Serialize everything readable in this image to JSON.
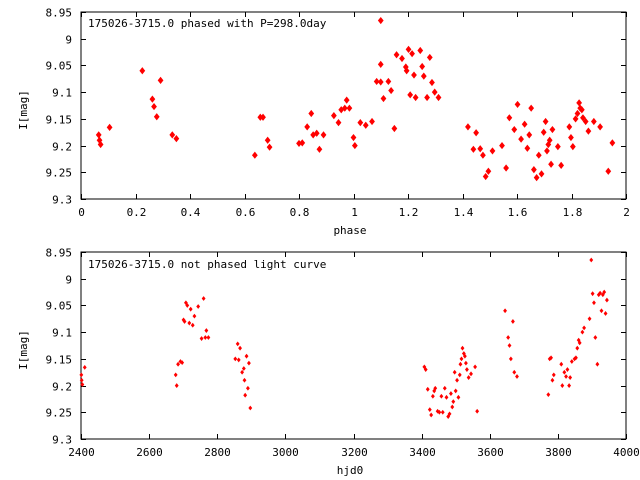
{
  "chart_data": [
    {
      "type": "scatter",
      "title": "175026-3715.0 phased with P=298.0day",
      "xlabel": "phase",
      "ylabel": "I[mag]",
      "xlim": [
        0,
        2
      ],
      "ylim": [
        8.95,
        9.3
      ],
      "y_inverted": true,
      "grid": false,
      "xticks": [
        "0",
        "0.2",
        "0.4",
        "0.6",
        "0.8",
        "1",
        "1.2",
        "1.4",
        "1.6",
        "1.8",
        "2"
      ],
      "yticks": [
        "8.95",
        "9",
        "9.05",
        "9.1",
        "9.15",
        "9.2",
        "9.25",
        "9.3"
      ],
      "marker": "filled-diamond-large",
      "color": "#ff0000",
      "points": [
        [
          0.065,
          9.18
        ],
        [
          0.068,
          9.19
        ],
        [
          0.072,
          9.198
        ],
        [
          0.105,
          9.166
        ],
        [
          0.225,
          9.06
        ],
        [
          0.262,
          9.113
        ],
        [
          0.268,
          9.127
        ],
        [
          0.278,
          9.146
        ],
        [
          0.292,
          9.078
        ],
        [
          0.335,
          9.18
        ],
        [
          0.35,
          9.187
        ],
        [
          0.638,
          9.218
        ],
        [
          0.658,
          9.147
        ],
        [
          0.668,
          9.147
        ],
        [
          0.685,
          9.19
        ],
        [
          0.692,
          9.203
        ],
        [
          0.8,
          9.196
        ],
        [
          0.812,
          9.195
        ],
        [
          0.83,
          9.165
        ],
        [
          0.845,
          9.14
        ],
        [
          0.852,
          9.18
        ],
        [
          0.865,
          9.177
        ],
        [
          0.875,
          9.207
        ],
        [
          0.89,
          9.18
        ],
        [
          0.928,
          9.144
        ],
        [
          0.945,
          9.157
        ],
        [
          0.955,
          9.133
        ],
        [
          0.968,
          9.13
        ],
        [
          0.975,
          9.115
        ],
        [
          0.985,
          9.13
        ],
        [
          1.0,
          9.185
        ],
        [
          1.005,
          9.2
        ],
        [
          1.025,
          9.157
        ],
        [
          1.045,
          9.162
        ],
        [
          1.068,
          9.155
        ],
        [
          1.085,
          9.08
        ],
        [
          1.1,
          9.081
        ],
        [
          1.1,
          9.048
        ],
        [
          1.1,
          8.966
        ],
        [
          1.11,
          9.112
        ],
        [
          1.128,
          9.08
        ],
        [
          1.138,
          9.097
        ],
        [
          1.15,
          9.168
        ],
        [
          1.158,
          9.03
        ],
        [
          1.178,
          9.037
        ],
        [
          1.192,
          9.053
        ],
        [
          1.195,
          9.06
        ],
        [
          1.202,
          9.02
        ],
        [
          1.208,
          9.105
        ],
        [
          1.215,
          9.028
        ],
        [
          1.222,
          9.068
        ],
        [
          1.228,
          9.11
        ],
        [
          1.245,
          9.022
        ],
        [
          1.252,
          9.052
        ],
        [
          1.258,
          9.07
        ],
        [
          1.27,
          9.11
        ],
        [
          1.28,
          9.035
        ],
        [
          1.288,
          9.082
        ],
        [
          1.298,
          9.1
        ],
        [
          1.312,
          9.11
        ],
        [
          1.42,
          9.165
        ],
        [
          1.44,
          9.207
        ],
        [
          1.45,
          9.176
        ],
        [
          1.465,
          9.206
        ],
        [
          1.475,
          9.218
        ],
        [
          1.485,
          9.258
        ],
        [
          1.495,
          9.248
        ],
        [
          1.51,
          9.21
        ],
        [
          1.545,
          9.2
        ],
        [
          1.56,
          9.242
        ],
        [
          1.572,
          9.148
        ],
        [
          1.59,
          9.17
        ],
        [
          1.602,
          9.123
        ],
        [
          1.615,
          9.188
        ],
        [
          1.628,
          9.16
        ],
        [
          1.638,
          9.205
        ],
        [
          1.645,
          9.18
        ],
        [
          1.652,
          9.13
        ],
        [
          1.662,
          9.245
        ],
        [
          1.672,
          9.26
        ],
        [
          1.68,
          9.218
        ],
        [
          1.69,
          9.253
        ],
        [
          1.698,
          9.175
        ],
        [
          1.705,
          9.155
        ],
        [
          1.71,
          9.21
        ],
        [
          1.715,
          9.198
        ],
        [
          1.72,
          9.19
        ],
        [
          1.725,
          9.235
        ],
        [
          1.73,
          9.17
        ],
        [
          1.75,
          9.202
        ],
        [
          1.762,
          9.237
        ],
        [
          1.792,
          9.165
        ],
        [
          1.798,
          9.185
        ],
        [
          1.805,
          9.202
        ],
        [
          1.815,
          9.15
        ],
        [
          1.822,
          9.14
        ],
        [
          1.828,
          9.12
        ],
        [
          1.832,
          9.13
        ],
        [
          1.838,
          9.133
        ],
        [
          1.842,
          9.148
        ],
        [
          1.852,
          9.155
        ],
        [
          1.862,
          9.173
        ],
        [
          1.882,
          9.155
        ],
        [
          1.905,
          9.165
        ],
        [
          1.935,
          9.248
        ],
        [
          1.95,
          9.195
        ]
      ]
    },
    {
      "type": "scatter",
      "title": "175026-3715.0 not phased light curve",
      "xlabel": "hjd0",
      "ylabel": "I[mag]",
      "xlim": [
        2400,
        4000
      ],
      "ylim": [
        8.95,
        9.3
      ],
      "y_inverted": true,
      "grid": false,
      "xticks": [
        "2400",
        "2600",
        "2800",
        "3000",
        "3200",
        "3400",
        "3600",
        "3800",
        "4000"
      ],
      "yticks": [
        "8.95",
        "9",
        "9.05",
        "9.1",
        "9.15",
        "9.2",
        "9.25",
        "9.3"
      ],
      "marker": "filled-diamond-small",
      "color": "#ff0000",
      "points": [
        [
          2401,
          9.18
        ],
        [
          2402,
          9.19
        ],
        [
          2404,
          9.198
        ],
        [
          2411,
          9.166
        ],
        [
          2678,
          9.18
        ],
        [
          2681,
          9.2
        ],
        [
          2685,
          9.16
        ],
        [
          2692,
          9.155
        ],
        [
          2697,
          9.157
        ],
        [
          2701,
          9.077
        ],
        [
          2704,
          9.08
        ],
        [
          2708,
          9.045
        ],
        [
          2712,
          9.05
        ],
        [
          2718,
          9.083
        ],
        [
          2722,
          9.057
        ],
        [
          2728,
          9.087
        ],
        [
          2733,
          9.07
        ],
        [
          2744,
          9.052
        ],
        [
          2754,
          9.112
        ],
        [
          2760,
          9.037
        ],
        [
          2765,
          9.11
        ],
        [
          2768,
          9.097
        ],
        [
          2774,
          9.11
        ],
        [
          2853,
          9.15
        ],
        [
          2860,
          9.122
        ],
        [
          2863,
          9.152
        ],
        [
          2867,
          9.13
        ],
        [
          2873,
          9.175
        ],
        [
          2878,
          9.168
        ],
        [
          2880,
          9.19
        ],
        [
          2882,
          9.218
        ],
        [
          2886,
          9.145
        ],
        [
          2890,
          9.205
        ],
        [
          2893,
          9.158
        ],
        [
          2897,
          9.242
        ],
        [
          3408,
          9.165
        ],
        [
          3412,
          9.17
        ],
        [
          3418,
          9.207
        ],
        [
          3424,
          9.245
        ],
        [
          3428,
          9.255
        ],
        [
          3433,
          9.22
        ],
        [
          3437,
          9.21
        ],
        [
          3440,
          9.205
        ],
        [
          3447,
          9.248
        ],
        [
          3452,
          9.25
        ],
        [
          3458,
          9.22
        ],
        [
          3462,
          9.25
        ],
        [
          3468,
          9.205
        ],
        [
          3473,
          9.222
        ],
        [
          3478,
          9.258
        ],
        [
          3482,
          9.253
        ],
        [
          3486,
          9.215
        ],
        [
          3490,
          9.24
        ],
        [
          3493,
          9.23
        ],
        [
          3497,
          9.175
        ],
        [
          3500,
          9.21
        ],
        [
          3504,
          9.19
        ],
        [
          3508,
          9.222
        ],
        [
          3512,
          9.18
        ],
        [
          3514,
          9.16
        ],
        [
          3517,
          9.15
        ],
        [
          3520,
          9.13
        ],
        [
          3524,
          9.14
        ],
        [
          3527,
          9.145
        ],
        [
          3530,
          9.158
        ],
        [
          3533,
          9.17
        ],
        [
          3538,
          9.185
        ],
        [
          3545,
          9.178
        ],
        [
          3557,
          9.165
        ],
        [
          3563,
          9.248
        ],
        [
          3645,
          9.06
        ],
        [
          3654,
          9.11
        ],
        [
          3658,
          9.125
        ],
        [
          3662,
          9.15
        ],
        [
          3668,
          9.08
        ],
        [
          3672,
          9.175
        ],
        [
          3680,
          9.183
        ],
        [
          3772,
          9.217
        ],
        [
          3776,
          9.15
        ],
        [
          3780,
          9.148
        ],
        [
          3784,
          9.19
        ],
        [
          3788,
          9.18
        ],
        [
          3810,
          9.16
        ],
        [
          3813,
          9.2
        ],
        [
          3819,
          9.175
        ],
        [
          3824,
          9.183
        ],
        [
          3828,
          9.17
        ],
        [
          3833,
          9.2
        ],
        [
          3836,
          9.185
        ],
        [
          3841,
          9.155
        ],
        [
          3849,
          9.15
        ],
        [
          3853,
          9.148
        ],
        [
          3857,
          9.13
        ],
        [
          3861,
          9.115
        ],
        [
          3864,
          9.12
        ],
        [
          3872,
          9.1
        ],
        [
          3877,
          9.092
        ],
        [
          3893,
          9.075
        ],
        [
          3898,
          8.965
        ],
        [
          3902,
          9.028
        ],
        [
          3906,
          9.045
        ],
        [
          3910,
          9.11
        ],
        [
          3916,
          9.16
        ],
        [
          3920,
          9.03
        ],
        [
          3924,
          9.027
        ],
        [
          3928,
          9.06
        ],
        [
          3932,
          9.03
        ],
        [
          3936,
          9.025
        ],
        [
          3940,
          9.065
        ],
        [
          3944,
          9.04
        ]
      ]
    }
  ]
}
